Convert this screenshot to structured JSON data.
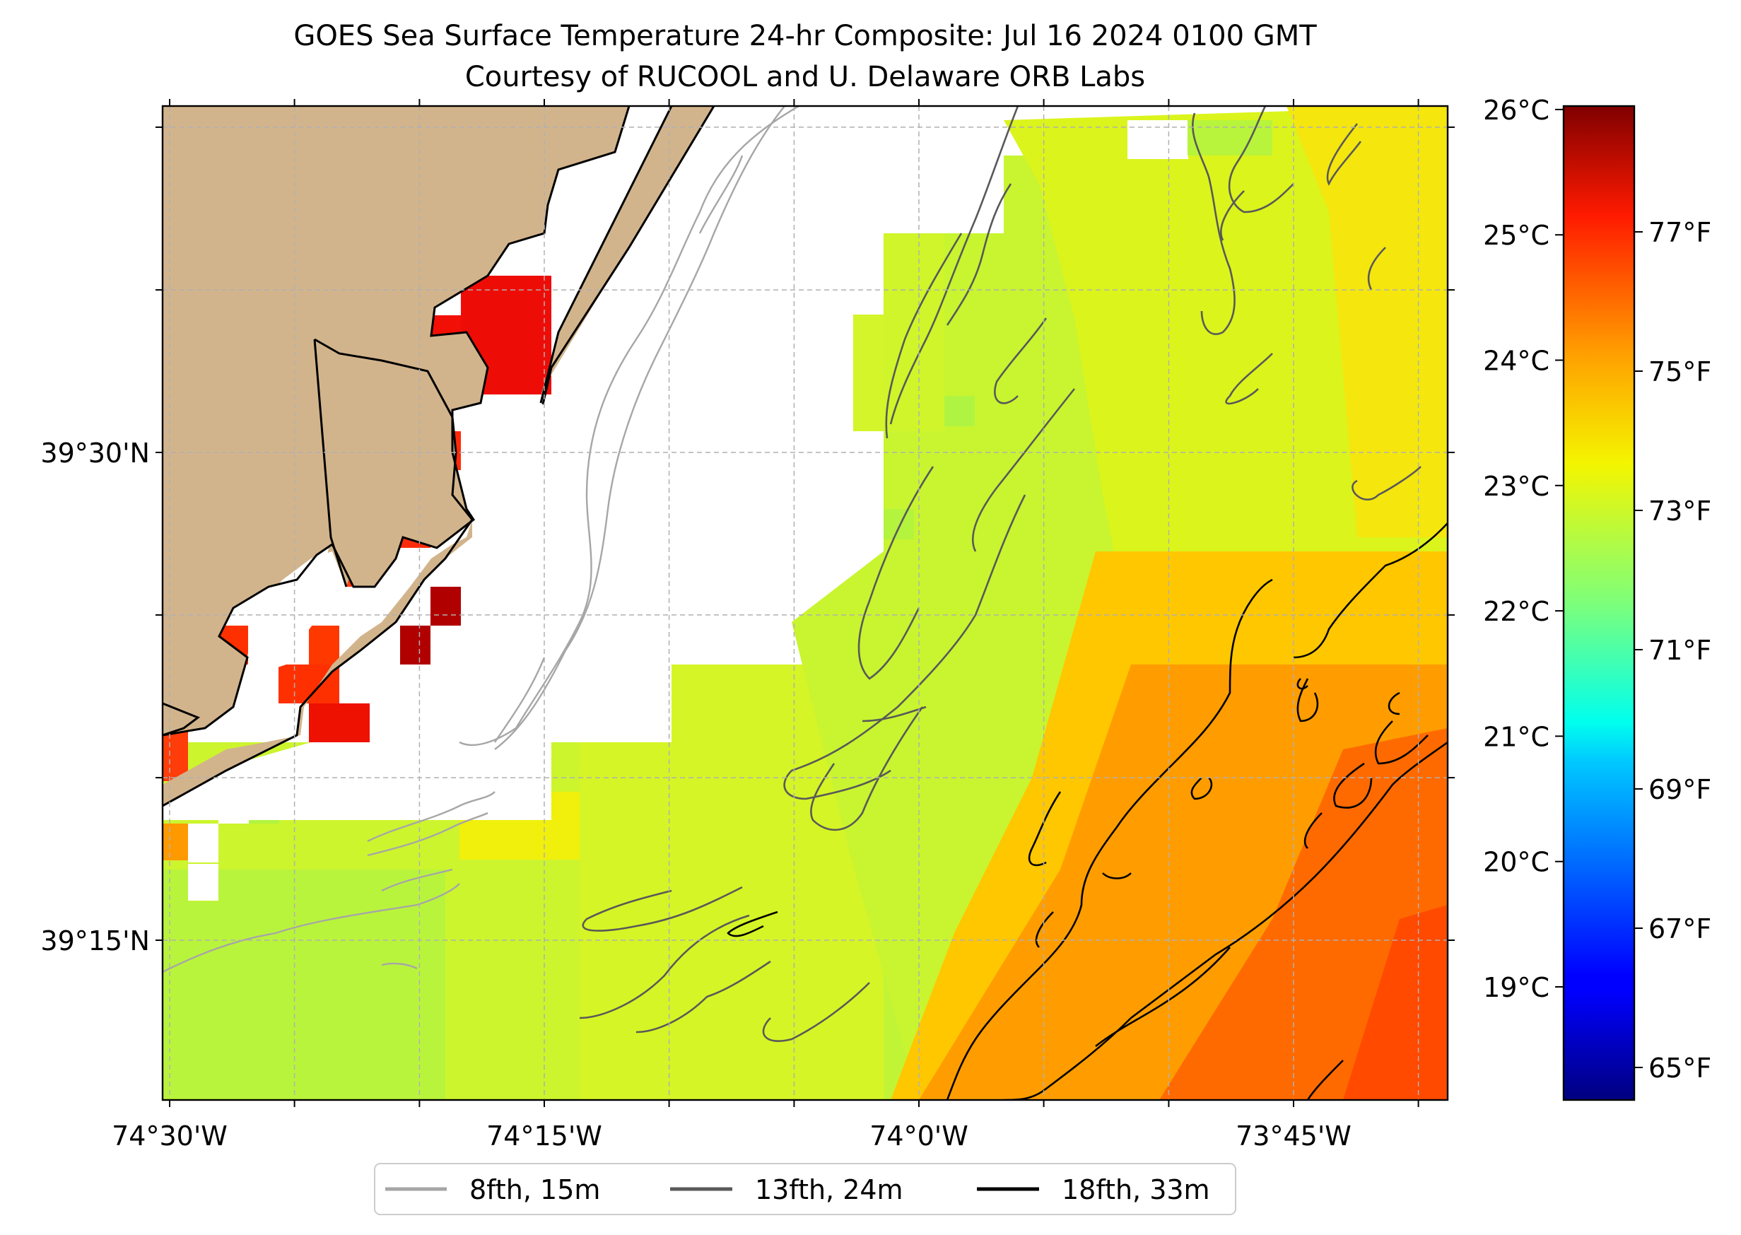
{
  "title": {
    "line1": "GOES Sea Surface Temperature 24-hr Composite: Jul 16 2024 0100 GMT",
    "line2": "Courtesy of RUCOOL and U. Delaware ORB Labs"
  },
  "axes": {
    "x_ticks": [
      {
        "lon": -74.5,
        "label": "74°30'W"
      },
      {
        "lon": -74.25,
        "label": "74°15'W"
      },
      {
        "lon": -74.0,
        "label": "74°0'W"
      },
      {
        "lon": -73.75,
        "label": "73°45'W"
      }
    ],
    "x_minor": [
      -74.4167,
      -74.3333,
      -74.1667,
      -74.0833,
      -73.9167,
      -73.8333,
      -73.6667
    ],
    "y_ticks": [
      {
        "lat": 39.5,
        "label": "39°30'N"
      },
      {
        "lat": 39.25,
        "label": "39°15'N"
      }
    ],
    "y_minor": [
      39.6667,
      39.5833,
      39.4167,
      39.3333
    ]
  },
  "colorbar": {
    "celsius": [
      {
        "v": 19,
        "label": "19°C"
      },
      {
        "v": 20,
        "label": "20°C"
      },
      {
        "v": 21,
        "label": "21°C"
      },
      {
        "v": 22,
        "label": "22°C"
      },
      {
        "v": 23,
        "label": "23°C"
      },
      {
        "v": 24,
        "label": "24°C"
      },
      {
        "v": 25,
        "label": "25°C"
      },
      {
        "v": 26,
        "label": "26°C"
      }
    ],
    "fahrenheit": [
      {
        "v": 65,
        "label": "65°F"
      },
      {
        "v": 67,
        "label": "67°F"
      },
      {
        "v": 69,
        "label": "69°F"
      },
      {
        "v": 71,
        "label": "71°F"
      },
      {
        "v": 73,
        "label": "73°F"
      },
      {
        "v": 75,
        "label": "75°F"
      },
      {
        "v": 77,
        "label": "77°F"
      }
    ]
  },
  "legend": [
    {
      "label": "8fth, 15m",
      "color": "#a6a6a6"
    },
    {
      "label": "13fth, 24m",
      "color": "#595959"
    },
    {
      "label": "18fth, 33m",
      "color": "#000000"
    }
  ],
  "colors": {
    "land": "#d2b48c",
    "grid": "#b0b0b0"
  }
}
